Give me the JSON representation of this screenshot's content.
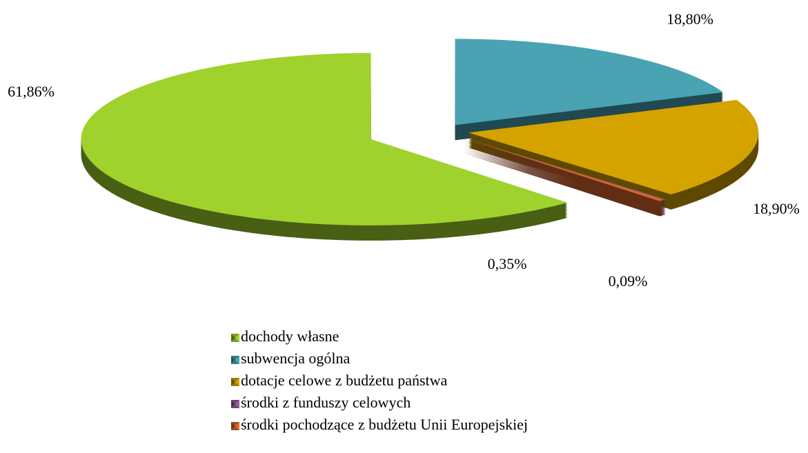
{
  "chart_data": {
    "type": "pie",
    "categories": [
      "dochody własne",
      "subwencja ogólna",
      "dotacje celowe z budżetu państwa",
      "środki z funduszy celowych",
      "środki pochodzące z budżetu Unii Europejskiej"
    ],
    "values": [
      61.86,
      18.8,
      18.9,
      0.09,
      0.35
    ],
    "value_labels": [
      "61,86%",
      "18,80%",
      "18,90%",
      "0,09%",
      "0,35%"
    ],
    "colors": [
      "#9fd22c",
      "#4aa3b3",
      "#d4a300",
      "#8d5a9c",
      "#d8662e"
    ],
    "legend": "bottom"
  }
}
